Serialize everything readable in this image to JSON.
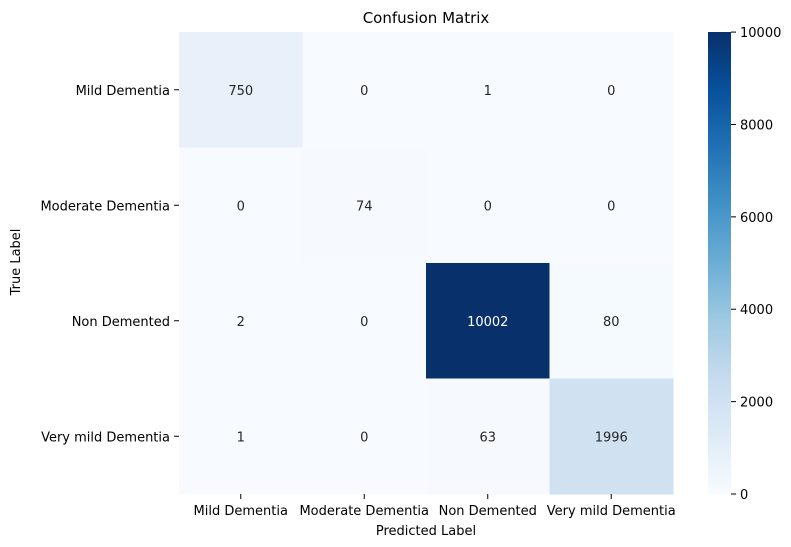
{
  "chart_data": {
    "type": "heatmap",
    "title": "Confusion Matrix",
    "xlabel": "Predicted Label",
    "ylabel": "True Label",
    "x_categories": [
      "Mild Dementia",
      "Moderate Dementia",
      "Non Demented",
      "Very mild Dementia"
    ],
    "y_categories": [
      "Mild Dementia",
      "Moderate Dementia",
      "Non Demented",
      "Very mild Dementia"
    ],
    "values": [
      [
        750,
        0,
        1,
        0
      ],
      [
        0,
        74,
        0,
        0
      ],
      [
        2,
        0,
        10002,
        80
      ],
      [
        1,
        0,
        63,
        1996
      ]
    ],
    "colorscale": "Blues",
    "colorbar": {
      "min": 0,
      "max": 10002,
      "ticks": [
        "0",
        "2000",
        "4000",
        "6000",
        "8000",
        "10000"
      ]
    }
  }
}
